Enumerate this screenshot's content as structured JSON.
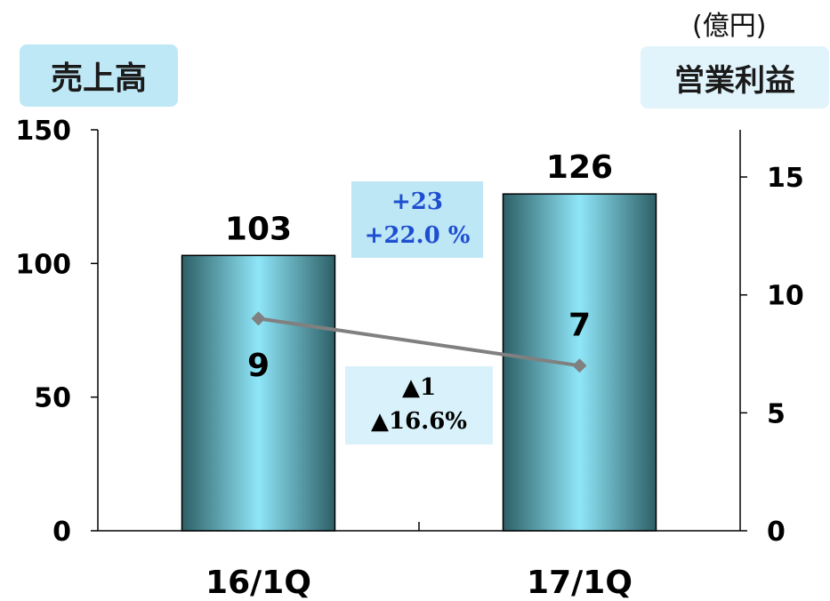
{
  "unit": "(億円)",
  "left_axis_title": "売上高",
  "right_axis_title": "営業利益",
  "sales_change": {
    "abs": "+23",
    "pct": "+22.0 %"
  },
  "profit_change": {
    "abs": "▲1",
    "pct": "▲16.6%"
  },
  "colors": {
    "bar_light": "#8fe6f8",
    "bar_dark": "#2d5f66",
    "line": "#808080",
    "left_title_bg": "#bfe8f6",
    "right_title_bg": "#e1f3fb",
    "sales_box_bg": "#bde7f5",
    "profit_box_bg": "#d9f1fa",
    "sales_box_text": "#1f4fd1",
    "profit_box_text": "#000000"
  },
  "chart_data": {
    "type": "bar",
    "categories": [
      "16/1Q",
      "17/1Q"
    ],
    "series": [
      {
        "values": [
          103,
          126
        ],
        "axis": "left",
        "type": "bar",
        "labels": [
          "103",
          "126"
        ]
      },
      {
        "values": [
          9,
          7
        ],
        "axis": "right",
        "type": "line",
        "marker": "diamond",
        "labels": [
          "9",
          "7"
        ]
      }
    ],
    "ylim": [
      0,
      150
    ],
    "y_ticks": [
      0,
      50,
      100,
      150
    ],
    "y2lim": [
      0,
      17
    ],
    "y2_ticks": [
      0,
      5,
      10,
      15
    ],
    "grid": false,
    "legend": "none"
  }
}
